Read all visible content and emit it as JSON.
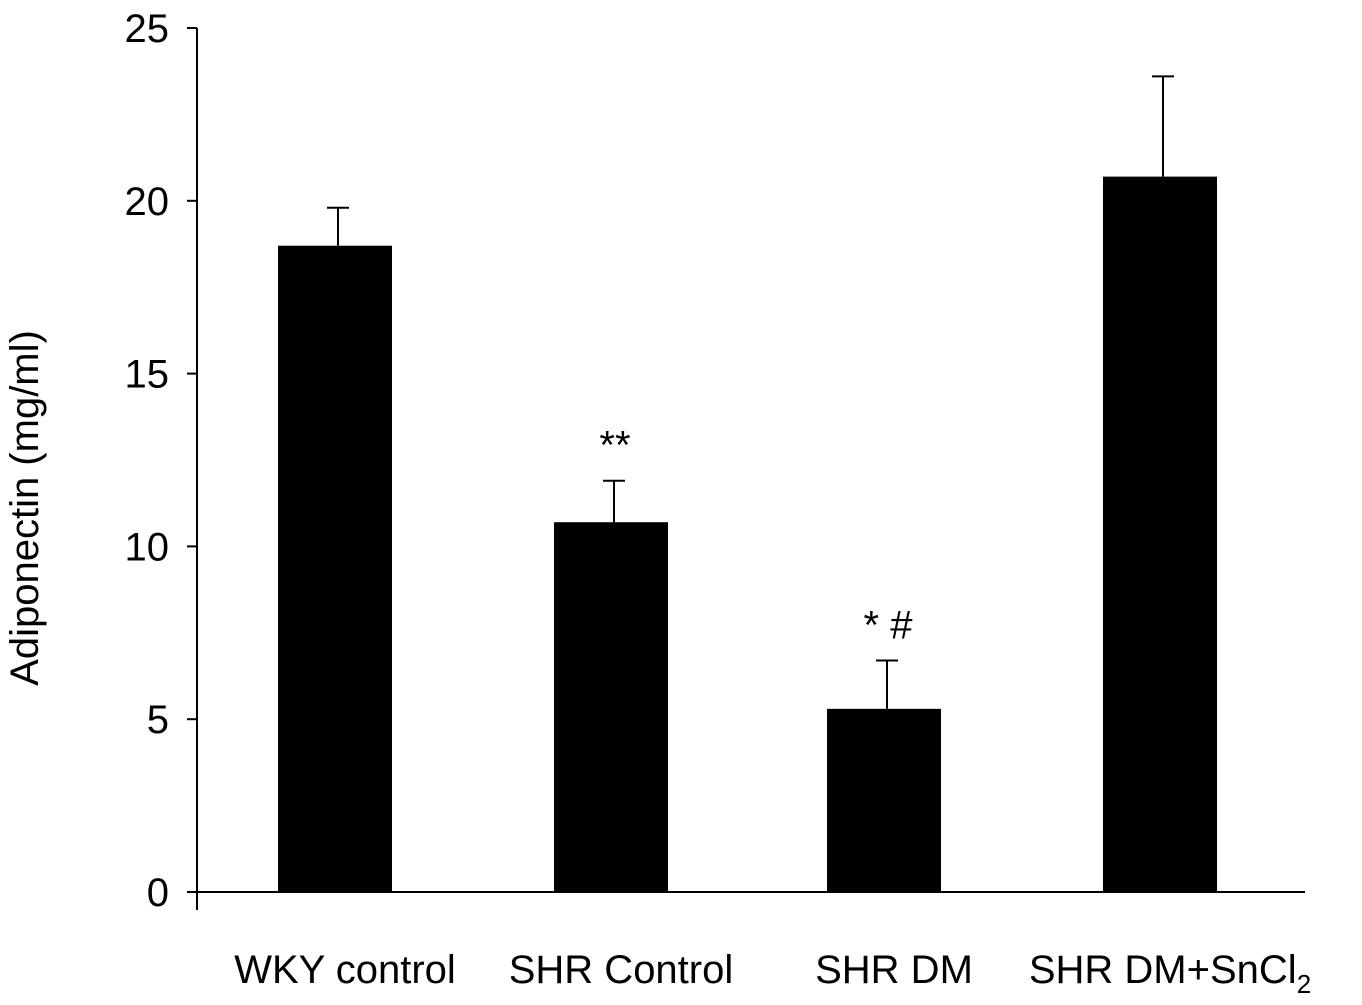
{
  "chart_data": {
    "type": "bar",
    "title": "",
    "xlabel": "",
    "ylabel": "Adiponectin (mg/ml)",
    "ylim": [
      0,
      25
    ],
    "yticks": [
      "0",
      "5",
      "10",
      "15",
      "20",
      "25"
    ],
    "grid": false,
    "categories": [
      {
        "label": "WKY control",
        "subscript": ""
      },
      {
        "label": "SHR Control",
        "subscript": ""
      },
      {
        "label": "SHR DM",
        "subscript": ""
      },
      {
        "label": "SHR DM+SnCl",
        "subscript": "2"
      }
    ],
    "values": [
      18.7,
      10.7,
      5.3,
      20.7
    ],
    "errors": [
      1.1,
      1.2,
      1.4,
      2.9
    ],
    "annotations": [
      "",
      "**",
      "*   #",
      ""
    ],
    "bar_color": "#000000"
  }
}
